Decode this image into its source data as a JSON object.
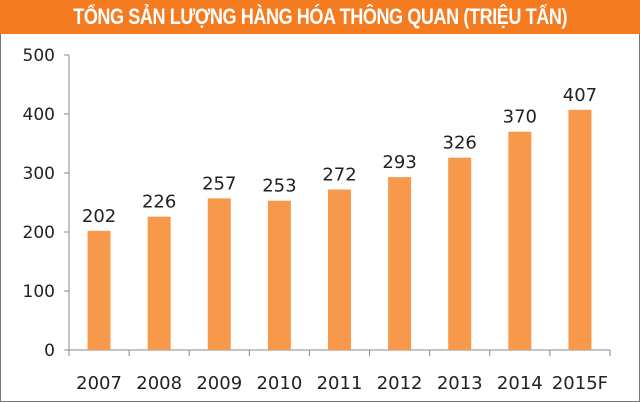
{
  "chart_data": {
    "type": "bar",
    "title": "TỔNG SẢN LƯỢNG HÀNG HÓA THÔNG QUAN (TRIỆU TẤN)",
    "categories": [
      "2007",
      "2008",
      "2009",
      "2010",
      "2011",
      "2012",
      "2013",
      "2014",
      "2015F"
    ],
    "values": [
      202,
      226,
      257,
      253,
      272,
      293,
      326,
      370,
      407
    ],
    "xlabel": "",
    "ylabel": "",
    "ylim": [
      0,
      500
    ],
    "yticks": [
      0,
      100,
      200,
      300,
      400,
      500
    ],
    "grid": false,
    "data_labels": true,
    "colors": {
      "bar": "#f7984a",
      "header": "#f47b20",
      "title_text": "#ffffff"
    }
  }
}
